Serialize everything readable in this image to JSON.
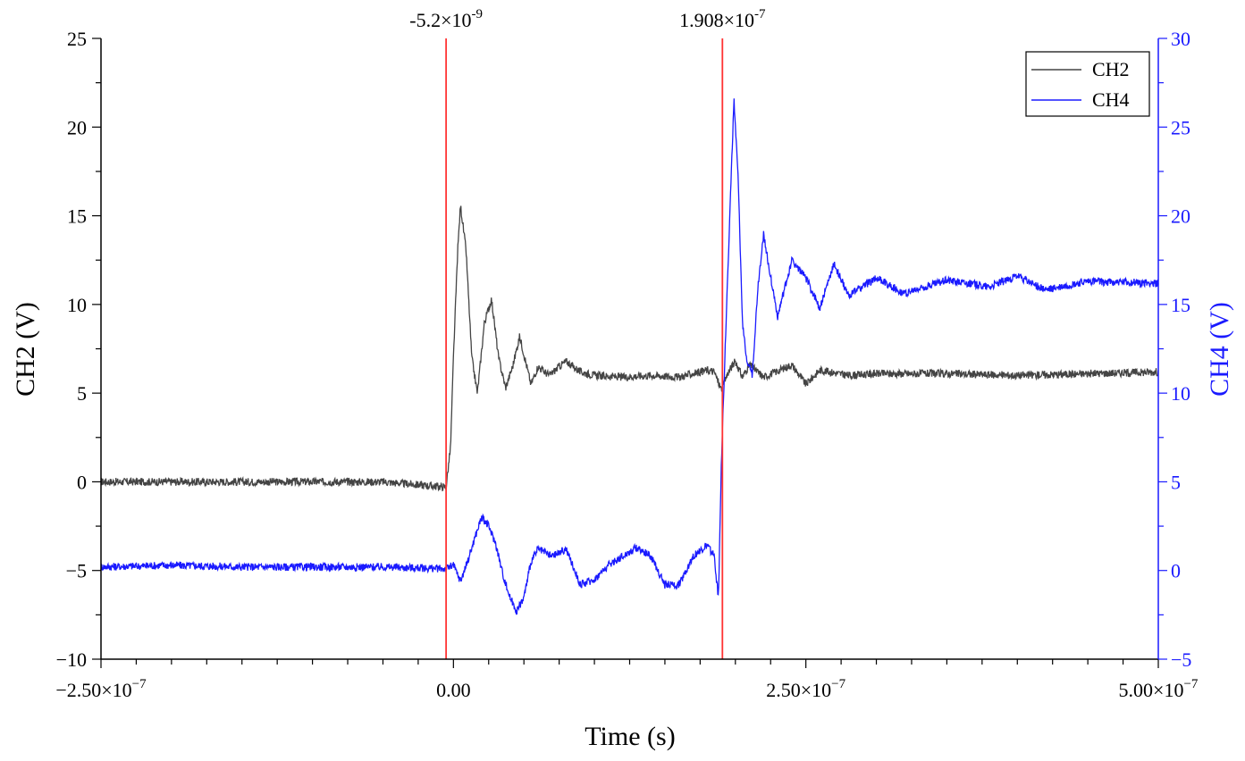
{
  "chart_data": {
    "type": "line",
    "xlabel": "Time (s)",
    "ylabel_left": "CH2 (V)",
    "ylabel_right": "CH4 (V)",
    "xlim": [
      -2.5e-07,
      5e-07
    ],
    "ylim_left": [
      -10,
      25
    ],
    "ylim_right": [
      -5,
      30
    ],
    "x_ticks": [
      {
        "value": -2.5e-07,
        "mantissa": "−2.50×10",
        "exp": "−7"
      },
      {
        "value": 0,
        "mantissa": "0.00",
        "exp": ""
      },
      {
        "value": 2.5e-07,
        "mantissa": "2.50×10",
        "exp": "−7"
      },
      {
        "value": 5e-07,
        "mantissa": "5.00×10",
        "exp": "−7"
      }
    ],
    "y_left_ticks": [
      "−10",
      "−5",
      "0",
      "5",
      "10",
      "15",
      "20",
      "25"
    ],
    "y_left_tick_values": [
      -10,
      -5,
      0,
      5,
      10,
      15,
      20,
      25
    ],
    "y_right_ticks": [
      "−5",
      "0",
      "5",
      "10",
      "15",
      "20",
      "25",
      "30"
    ],
    "y_right_tick_values": [
      -5,
      0,
      5,
      10,
      15,
      20,
      25,
      30
    ],
    "markers": [
      {
        "x": -5.2e-09,
        "mantissa": "-5.2×10",
        "exp": "-9",
        "color": "#ff3333"
      },
      {
        "x": 1.908e-07,
        "mantissa": "1.908×10",
        "exp": "-7",
        "color": "#ff3333"
      }
    ],
    "legend": {
      "placement": "top-right"
    },
    "series": [
      {
        "name": "CH2",
        "axis": "left",
        "color": "#444444",
        "x": [
          -2.5e-07,
          -2e-07,
          -1.5e-07,
          -1e-07,
          -5e-08,
          -5.2e-09,
          -2e-09,
          0,
          3e-09,
          5e-09,
          9e-09,
          1.3e-08,
          1.7e-08,
          2.2e-08,
          2.7e-08,
          3.2e-08,
          3.7e-08,
          4.2e-08,
          4.7e-08,
          5.5e-08,
          6e-08,
          6.8e-08,
          7.5e-08,
          8e-08,
          9e-08,
          1e-07,
          1.2e-07,
          1.4e-07,
          1.6e-07,
          1.8e-07,
          1.85e-07,
          1.9e-07,
          1.95e-07,
          2e-07,
          2.05e-07,
          2.1e-07,
          2.2e-07,
          2.4e-07,
          2.5e-07,
          2.6e-07,
          2.8e-07,
          3e-07,
          3.5e-07,
          4e-07,
          4.5e-07,
          5e-07
        ],
        "values": [
          0,
          0,
          0,
          0,
          0,
          -0.3,
          2,
          7,
          13,
          15.6,
          13,
          7,
          5,
          9,
          10.3,
          7,
          5.3,
          6.5,
          8.2,
          5.5,
          6.5,
          6,
          6.5,
          6.8,
          6.2,
          6,
          5.9,
          6,
          5.9,
          6.3,
          6.2,
          5.2,
          6.2,
          6.8,
          5.9,
          6.6,
          5.9,
          6.6,
          5.5,
          6.3,
          6.0,
          6.1,
          6.1,
          6.0,
          6.1,
          6.2
        ]
      },
      {
        "name": "CH4",
        "axis": "right",
        "color": "#1a1aff",
        "x": [
          -2.5e-07,
          -2e-07,
          -1.5e-07,
          -1e-07,
          -5e-08,
          -5e-09,
          0,
          5e-09,
          1e-08,
          1.5e-08,
          2e-08,
          2.5e-08,
          3e-08,
          3.5e-08,
          4e-08,
          4.5e-08,
          5e-08,
          5.5e-08,
          6e-08,
          7e-08,
          8e-08,
          9e-08,
          1e-07,
          1.1e-07,
          1.2e-07,
          1.3e-07,
          1.4e-07,
          1.5e-07,
          1.6e-07,
          1.7e-07,
          1.8e-07,
          1.85e-07,
          1.88e-07,
          1.9e-07,
          1.93e-07,
          1.96e-07,
          1.99e-07,
          2.02e-07,
          2.05e-07,
          2.08e-07,
          2.12e-07,
          2.16e-07,
          2.2e-07,
          2.24e-07,
          2.3e-07,
          2.4e-07,
          2.5e-07,
          2.6e-07,
          2.7e-07,
          2.8e-07,
          3e-07,
          3.2e-07,
          3.5e-07,
          3.8e-07,
          4e-07,
          4.2e-07,
          4.5e-07,
          5e-07
        ],
        "values": [
          0.2,
          0.3,
          0.2,
          0.2,
          0.2,
          0.1,
          0.3,
          -0.6,
          0.5,
          1.8,
          3.0,
          2.5,
          1.5,
          -0.2,
          -1.5,
          -2.3,
          -1.5,
          0.5,
          1.2,
          0.8,
          1.2,
          -0.8,
          -0.5,
          0.3,
          0.8,
          1.3,
          0.8,
          -0.8,
          -0.8,
          0.8,
          1.4,
          0.8,
          -1.6,
          6,
          13,
          20,
          26.5,
          22,
          14,
          12,
          11,
          16,
          19,
          17,
          14.3,
          17.5,
          16.5,
          14.8,
          17.3,
          15.5,
          16.5,
          15.6,
          16.4,
          16.0,
          16.6,
          15.8,
          16.3,
          16.2
        ]
      }
    ]
  }
}
